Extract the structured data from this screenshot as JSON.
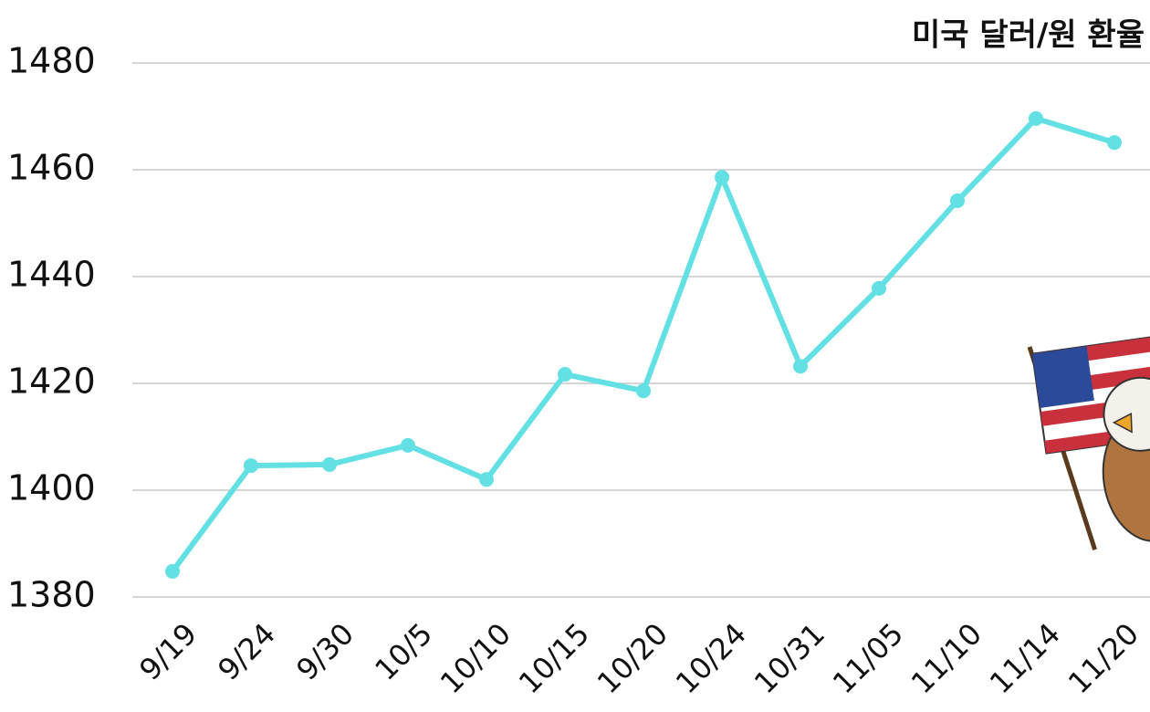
{
  "chart_data": {
    "type": "line",
    "title": "미국 달러/원 환율",
    "categories": [
      "9/19",
      "9/24",
      "9/30",
      "10/5",
      "10/10",
      "10/15",
      "10/20",
      "10/24",
      "10/31",
      "11/05",
      "11/10",
      "11/14",
      "11/20"
    ],
    "values": [
      1384.8,
      1404.6,
      1404.8,
      1408.4,
      1402,
      1421.7,
      1418.6,
      1458.6,
      1423.2,
      1437.8,
      1454.2,
      1469.6,
      1465.1
    ],
    "color": "#62e0e4",
    "ylim": [
      1380,
      1480
    ],
    "yticks": [
      1380,
      1400,
      1420,
      1440,
      1460,
      1480
    ],
    "grid": true
  }
}
